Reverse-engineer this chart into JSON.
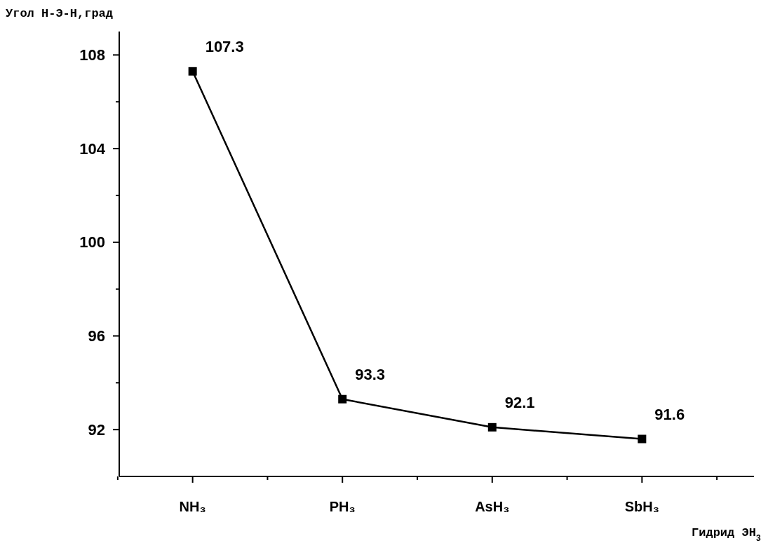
{
  "chart_data": {
    "type": "line",
    "ylabel": "Угол Н-Э-Н,град",
    "xlabel": "Гидрид ЭН$_{3}$",
    "categories": [
      "NH₃",
      "PH₃",
      "AsH₃",
      "SbH₃"
    ],
    "series": [
      {
        "color": "#000000",
        "values": [
          107.3,
          93.3,
          92.1,
          91.6
        ]
      }
    ],
    "ylim": [
      90,
      109
    ],
    "yticks": [
      92,
      {
        "value": 94,
        "label": null
      },
      96,
      {
        "value": 98,
        "label": null
      },
      100,
      {
        "value": 102,
        "label": null
      },
      104,
      {
        "value": 106,
        "label": null
      },
      108
    ],
    "data_labels": true,
    "marker": "square",
    "line_style": "solid",
    "grid": false
  }
}
